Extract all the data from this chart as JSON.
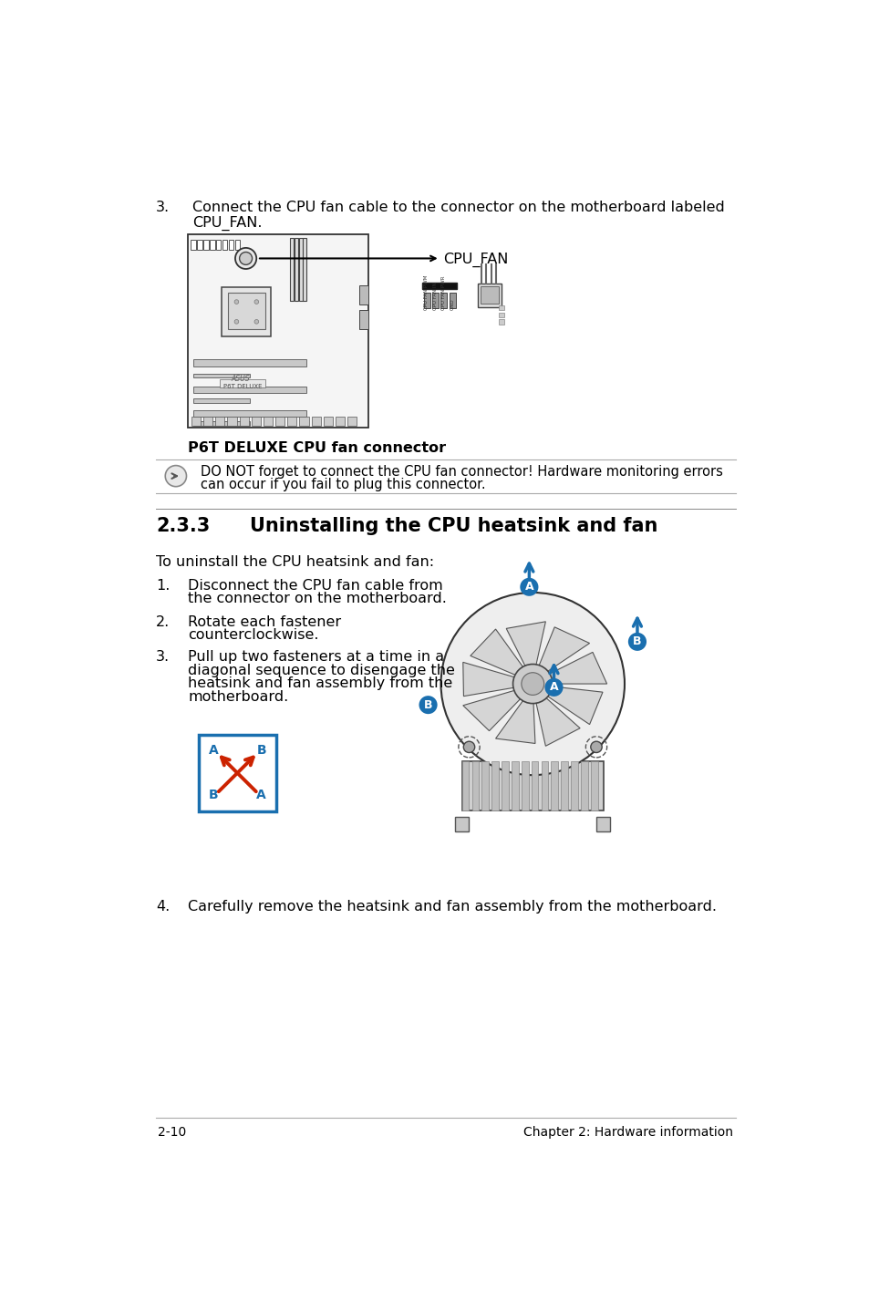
{
  "bg_color": "#ffffff",
  "text_color": "#000000",
  "footer_left": "2-10",
  "footer_right": "Chapter 2: Hardware information",
  "section_number": "3.",
  "section_text_line1": "Connect the CPU fan cable to the connector on the motherboard labeled",
  "section_text_line2": "CPU_FAN.",
  "caption_text": "P6T DELUXE CPU fan connector",
  "cpu_fan_label": "CPU_FAN",
  "note_text_line1": "DO NOT forget to connect the CPU fan connector! Hardware monitoring errors",
  "note_text_line2": "can occur if you fail to plug this connector.",
  "section233_num": "2.3.3",
  "section233_text": "Uninstalling the CPU heatsink and fan",
  "intro_text": "To uninstall the CPU heatsink and fan:",
  "step1_num": "1.",
  "step1_line1": "Disconnect the CPU fan cable from",
  "step1_line2": "the connector on the motherboard.",
  "step2_num": "2.",
  "step2_line1": "Rotate each fastener",
  "step2_line2": "counterclockwise.",
  "step3_num": "3.",
  "step3_line1": "Pull up two fasteners at a time in a",
  "step3_line2": "diagonal sequence to disengage the",
  "step3_line3": "heatsink and fan assembly from the",
  "step3_line4": "motherboard.",
  "step4_num": "4.",
  "step4_text": "Carefully remove the heatsink and fan assembly from the motherboard.",
  "accent_color": "#1a6faf",
  "red_color": "#cc2200",
  "gray_line": "#bbbbbb",
  "dark_line": "#555555"
}
